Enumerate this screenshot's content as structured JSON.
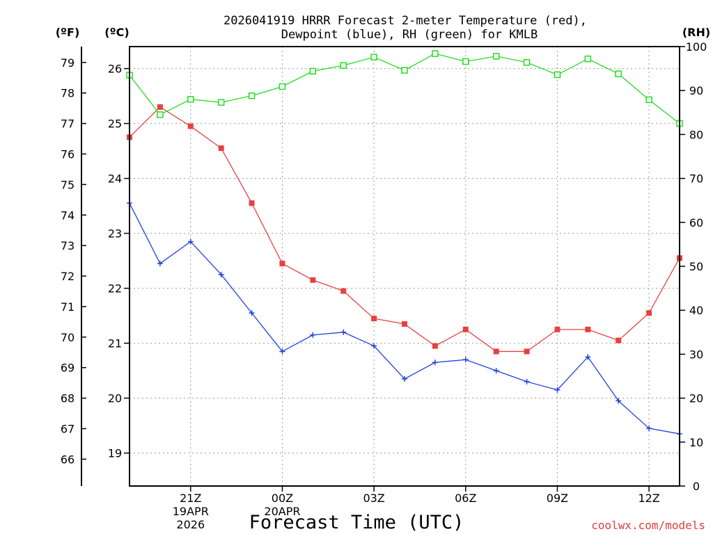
{
  "chart_data": {
    "type": "line",
    "title_line1": "2026041919 HRRR Forecast 2-meter Temperature (red),",
    "title_line2": "Dewpoint (blue), RH (green) for KMLB",
    "xlabel": "Forecast Time (UTC)",
    "x_hours": [
      19,
      20,
      21,
      22,
      23,
      24,
      25,
      26,
      27,
      28,
      29,
      30,
      31,
      32,
      33,
      34,
      35,
      36,
      37
    ],
    "x_ticks": [
      {
        "hour": 21,
        "label": "21Z",
        "sub1": "19APR",
        "sub2": "2026"
      },
      {
        "hour": 24,
        "label": "00Z",
        "sub1": "20APR",
        "sub2": ""
      },
      {
        "hour": 27,
        "label": "03Z",
        "sub1": "",
        "sub2": ""
      },
      {
        "hour": 30,
        "label": "06Z",
        "sub1": "",
        "sub2": ""
      },
      {
        "hour": 33,
        "label": "09Z",
        "sub1": "",
        "sub2": ""
      },
      {
        "hour": 36,
        "label": "12Z",
        "sub1": "",
        "sub2": ""
      }
    ],
    "axis_celsius": {
      "label": "(ºC)",
      "ylim": [
        18.4,
        26.4
      ],
      "ticks": [
        19,
        20,
        21,
        22,
        23,
        24,
        25,
        26
      ]
    },
    "axis_fahrenheit": {
      "label": "(ºF)",
      "ticks": [
        66,
        67,
        68,
        69,
        70,
        71,
        72,
        73,
        74,
        75,
        76,
        77,
        78,
        79
      ]
    },
    "axis_rh": {
      "label": "(RH)",
      "ylim": [
        0,
        100
      ],
      "ticks": [
        0,
        10,
        20,
        30,
        40,
        50,
        60,
        70,
        80,
        90,
        100
      ]
    },
    "series": [
      {
        "name": "Temperature",
        "unit": "C",
        "axis": "celsius",
        "color": "#e84040",
        "marker": "filled-square",
        "values": [
          24.75,
          25.3,
          24.95,
          24.55,
          23.55,
          22.45,
          22.15,
          21.95,
          21.45,
          21.35,
          20.95,
          21.25,
          20.85,
          20.85,
          21.25,
          21.25,
          21.05,
          21.55,
          22.55
        ]
      },
      {
        "name": "Dewpoint",
        "unit": "C",
        "axis": "celsius",
        "color": "#2040e0",
        "marker": "plus",
        "values": [
          23.55,
          22.45,
          22.85,
          22.25,
          21.55,
          20.85,
          21.15,
          21.2,
          20.95,
          20.35,
          20.65,
          20.7,
          20.5,
          20.3,
          20.15,
          20.75,
          19.95,
          19.45,
          19.35
        ]
      },
      {
        "name": "RH",
        "unit": "%",
        "axis": "rh",
        "color": "#22dd22",
        "marker": "open-square",
        "values": [
          93.5,
          84.5,
          88,
          87.3,
          88.8,
          90.9,
          94.4,
          95.7,
          97.6,
          94.6,
          98.4,
          96.6,
          97.8,
          96.4,
          93.6,
          97.2,
          93.8,
          87.9,
          82.5
        ]
      }
    ]
  },
  "credit": "coolwx.com/models",
  "colors": {
    "temperature": "#e84040",
    "dewpoint": "#2040e0",
    "rh": "#22dd22",
    "credit": "#e03c3c"
  }
}
